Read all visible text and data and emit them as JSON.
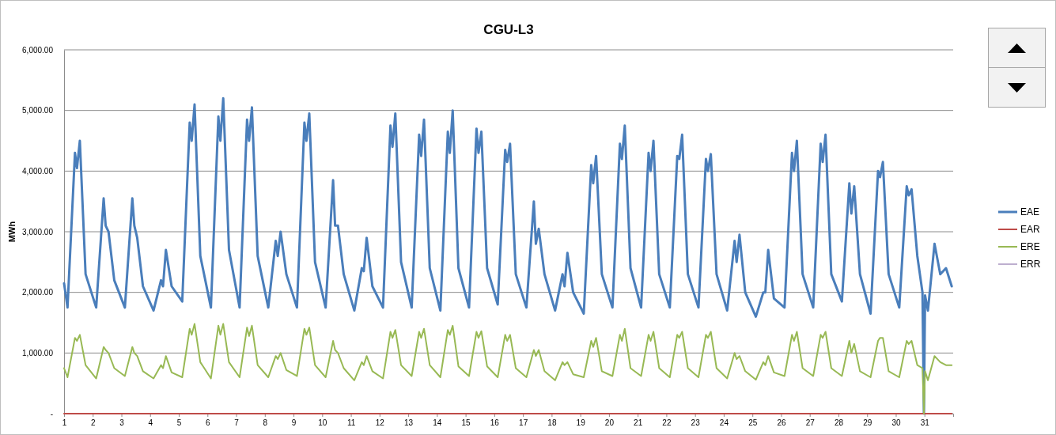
{
  "chart_data": {
    "type": "line",
    "title": "CGU-L3",
    "ylabel": "MWh",
    "x": [
      1,
      1.12,
      1.38,
      1.45,
      1.55,
      1.75,
      2.12,
      2.38,
      2.45,
      2.55,
      2.75,
      3.12,
      3.38,
      3.45,
      3.55,
      3.75,
      4.12,
      4.38,
      4.45,
      4.55,
      4.75,
      5.12,
      5.38,
      5.45,
      5.55,
      5.75,
      6.12,
      6.38,
      6.45,
      6.55,
      6.75,
      7.12,
      7.38,
      7.45,
      7.55,
      7.75,
      8.12,
      8.38,
      8.45,
      8.55,
      8.75,
      9.12,
      9.38,
      9.45,
      9.55,
      9.75,
      10.12,
      10.38,
      10.45,
      10.55,
      10.75,
      11.12,
      11.38,
      11.45,
      11.55,
      11.75,
      12.12,
      12.38,
      12.45,
      12.55,
      12.75,
      13.12,
      13.38,
      13.45,
      13.55,
      13.75,
      14.12,
      14.38,
      14.45,
      14.55,
      14.75,
      15.12,
      15.38,
      15.45,
      15.55,
      15.75,
      16.12,
      16.38,
      16.45,
      16.55,
      16.75,
      17.12,
      17.38,
      17.45,
      17.55,
      17.75,
      18.12,
      18.38,
      18.45,
      18.55,
      18.75,
      19.12,
      19.38,
      19.45,
      19.55,
      19.75,
      20.12,
      20.38,
      20.45,
      20.55,
      20.75,
      21.12,
      21.38,
      21.45,
      21.55,
      21.75,
      22.12,
      22.38,
      22.45,
      22.55,
      22.75,
      23.12,
      23.38,
      23.45,
      23.55,
      23.75,
      24.12,
      24.38,
      24.45,
      24.55,
      24.75,
      25.12,
      25.38,
      25.45,
      25.55,
      25.75,
      26.12,
      26.38,
      26.45,
      26.55,
      26.75,
      27.12,
      27.38,
      27.45,
      27.55,
      27.75,
      28.12,
      28.38,
      28.45,
      28.55,
      28.75,
      29.12,
      29.38,
      29.45,
      29.55,
      29.75,
      30.12,
      30.38,
      30.45,
      30.55,
      30.75,
      30.93,
      30.98,
      31.02,
      31.12,
      31.35,
      31.55,
      31.75,
      31.95
    ],
    "series": [
      {
        "name": "EAE",
        "color": "#4a7ebb",
        "values": [
          2150,
          1750,
          4300,
          4050,
          4500,
          2300,
          1750,
          3550,
          3100,
          3000,
          2200,
          1750,
          3550,
          3100,
          2900,
          2100,
          1700,
          2200,
          2100,
          2700,
          2100,
          1850,
          4800,
          4500,
          5100,
          2600,
          1750,
          4900,
          4500,
          5200,
          2700,
          1750,
          4850,
          4500,
          5050,
          2600,
          1750,
          2850,
          2600,
          3000,
          2300,
          1750,
          4800,
          4500,
          4950,
          2500,
          1750,
          3850,
          3100,
          3100,
          2300,
          1700,
          2400,
          2350,
          2900,
          2100,
          1750,
          4750,
          4400,
          4950,
          2500,
          1750,
          4600,
          4250,
          4850,
          2400,
          1700,
          4650,
          4300,
          5000,
          2400,
          1750,
          4700,
          4300,
          4650,
          2400,
          1800,
          4350,
          4150,
          4450,
          2300,
          1750,
          3500,
          2800,
          3050,
          2300,
          1700,
          2300,
          2100,
          2650,
          2000,
          1650,
          4100,
          3800,
          4250,
          2300,
          1750,
          4450,
          4200,
          4750,
          2400,
          1750,
          4300,
          4000,
          4500,
          2300,
          1750,
          4250,
          4200,
          4600,
          2300,
          1750,
          4200,
          4000,
          4280,
          2300,
          1700,
          2850,
          2500,
          2950,
          2000,
          1600,
          2000,
          2000,
          2700,
          1900,
          1750,
          4300,
          4000,
          4500,
          2300,
          1750,
          4450,
          4150,
          4600,
          2300,
          1850,
          3800,
          3300,
          3750,
          2300,
          1650,
          4000,
          3900,
          4150,
          2300,
          1750,
          3750,
          3600,
          3700,
          2600,
          2000,
          0,
          1950,
          1700,
          2800,
          2300,
          2400,
          2100
        ]
      },
      {
        "name": "EAR",
        "color": "#be4b48",
        "values": [
          0,
          0,
          0,
          0,
          0,
          0,
          0,
          0,
          0,
          0,
          0,
          0,
          0,
          0,
          0,
          0,
          0,
          0,
          0,
          0,
          0,
          0,
          0,
          0,
          0,
          0,
          0,
          0,
          0,
          0,
          0,
          0,
          0,
          0,
          0,
          0,
          0,
          0,
          0,
          0,
          0,
          0,
          0,
          0,
          0,
          0,
          0,
          0,
          0,
          0,
          0,
          0,
          0,
          0,
          0,
          0,
          0,
          0,
          0,
          0,
          0,
          0,
          0,
          0,
          0,
          0,
          0,
          0,
          0,
          0,
          0,
          0,
          0,
          0,
          0,
          0,
          0,
          0,
          0,
          0,
          0,
          0,
          0,
          0,
          0,
          0,
          0,
          0,
          0,
          0,
          0,
          0,
          0,
          0,
          0,
          0,
          0,
          0,
          0,
          0,
          0,
          0,
          0,
          0,
          0,
          0,
          0,
          0,
          0,
          0,
          0,
          0,
          0,
          0,
          0,
          0,
          0,
          0,
          0,
          0,
          0,
          0,
          0,
          0,
          0,
          0,
          0,
          0,
          0,
          0,
          0,
          0,
          0,
          0,
          0,
          0,
          0,
          0,
          0,
          0,
          0,
          0,
          0,
          0,
          0,
          0,
          0,
          0,
          0,
          0,
          0,
          0,
          0,
          0,
          0,
          0,
          0,
          0,
          0
        ]
      },
      {
        "name": "ERE",
        "color": "#98b954",
        "values": [
          750,
          600,
          1250,
          1200,
          1300,
          800,
          580,
          1100,
          1050,
          1000,
          750,
          620,
          1100,
          1000,
          950,
          700,
          580,
          800,
          750,
          950,
          680,
          600,
          1400,
          1300,
          1480,
          850,
          580,
          1450,
          1300,
          1480,
          850,
          600,
          1420,
          1280,
          1450,
          800,
          600,
          950,
          900,
          1000,
          720,
          620,
          1400,
          1300,
          1420,
          800,
          600,
          1200,
          1050,
          1000,
          750,
          550,
          850,
          800,
          950,
          700,
          580,
          1350,
          1250,
          1380,
          800,
          620,
          1350,
          1250,
          1400,
          800,
          600,
          1380,
          1300,
          1450,
          780,
          620,
          1350,
          1250,
          1360,
          780,
          600,
          1300,
          1200,
          1300,
          750,
          600,
          1050,
          950,
          1050,
          700,
          550,
          850,
          800,
          850,
          650,
          600,
          1200,
          1100,
          1250,
          700,
          620,
          1300,
          1200,
          1400,
          750,
          620,
          1300,
          1200,
          1350,
          750,
          600,
          1300,
          1250,
          1350,
          750,
          600,
          1300,
          1250,
          1350,
          750,
          580,
          1000,
          900,
          950,
          700,
          560,
          850,
          800,
          950,
          680,
          620,
          1300,
          1200,
          1350,
          750,
          620,
          1300,
          1250,
          1350,
          750,
          620,
          1200,
          1000,
          1150,
          700,
          600,
          1200,
          1250,
          1250,
          700,
          600,
          1200,
          1150,
          1200,
          800,
          750,
          0,
          700,
          550,
          950,
          850,
          800,
          800
        ]
      },
      {
        "name": "ERR",
        "color": "#7d60a0",
        "values": [
          null,
          null,
          null,
          null,
          null,
          null,
          null,
          null,
          null,
          null,
          null,
          null,
          null,
          null,
          null,
          null,
          null,
          null,
          null,
          null,
          null,
          null,
          null,
          null,
          null,
          null,
          null,
          null,
          null,
          null,
          null,
          null,
          null,
          null,
          null,
          null,
          null,
          null,
          null,
          null,
          null,
          null,
          null,
          null,
          null,
          null,
          null,
          null,
          null,
          null,
          null,
          null,
          null,
          null,
          null,
          null,
          null,
          null,
          null,
          null,
          null,
          null,
          null,
          null,
          null,
          null,
          null,
          null,
          null,
          null,
          null,
          null,
          null,
          null,
          null,
          null,
          null,
          null,
          null,
          null,
          null,
          null,
          null,
          null,
          null,
          null,
          null,
          null,
          null,
          null,
          null,
          null,
          null,
          null,
          null,
          null,
          null,
          null,
          null,
          null,
          null,
          null,
          null,
          null,
          null,
          null,
          null,
          null,
          null,
          null,
          null,
          null,
          null,
          null,
          null,
          null,
          null,
          null,
          null,
          null,
          null,
          null,
          null,
          null,
          null,
          null,
          null,
          null,
          null,
          null,
          null,
          null,
          null,
          null,
          null,
          null,
          null,
          null,
          null,
          null,
          null,
          null,
          null,
          null,
          null,
          null,
          null,
          null,
          null,
          null,
          null,
          null,
          null,
          null,
          null,
          null,
          null,
          null,
          null
        ]
      }
    ],
    "xlim": [
      1,
      32
    ],
    "xticks": [
      1,
      2,
      3,
      4,
      5,
      6,
      7,
      8,
      9,
      10,
      11,
      12,
      13,
      14,
      15,
      16,
      17,
      18,
      19,
      20,
      21,
      22,
      23,
      24,
      25,
      26,
      27,
      28,
      29,
      30,
      31
    ],
    "ylim": [
      0,
      6000
    ],
    "yticks": [
      {
        "value": 0,
        "label": "-"
      },
      {
        "value": 1000,
        "label": "1,000.00"
      },
      {
        "value": 2000,
        "label": "2,000.00"
      },
      {
        "value": 3000,
        "label": "3,000.00"
      },
      {
        "value": 4000,
        "label": "4,000.00"
      },
      {
        "value": 5000,
        "label": "5,000.00"
      },
      {
        "value": 6000,
        "label": "6,000.00"
      }
    ],
    "grid": "y",
    "legend": "right",
    "marker": "none",
    "line_style": "solid"
  }
}
